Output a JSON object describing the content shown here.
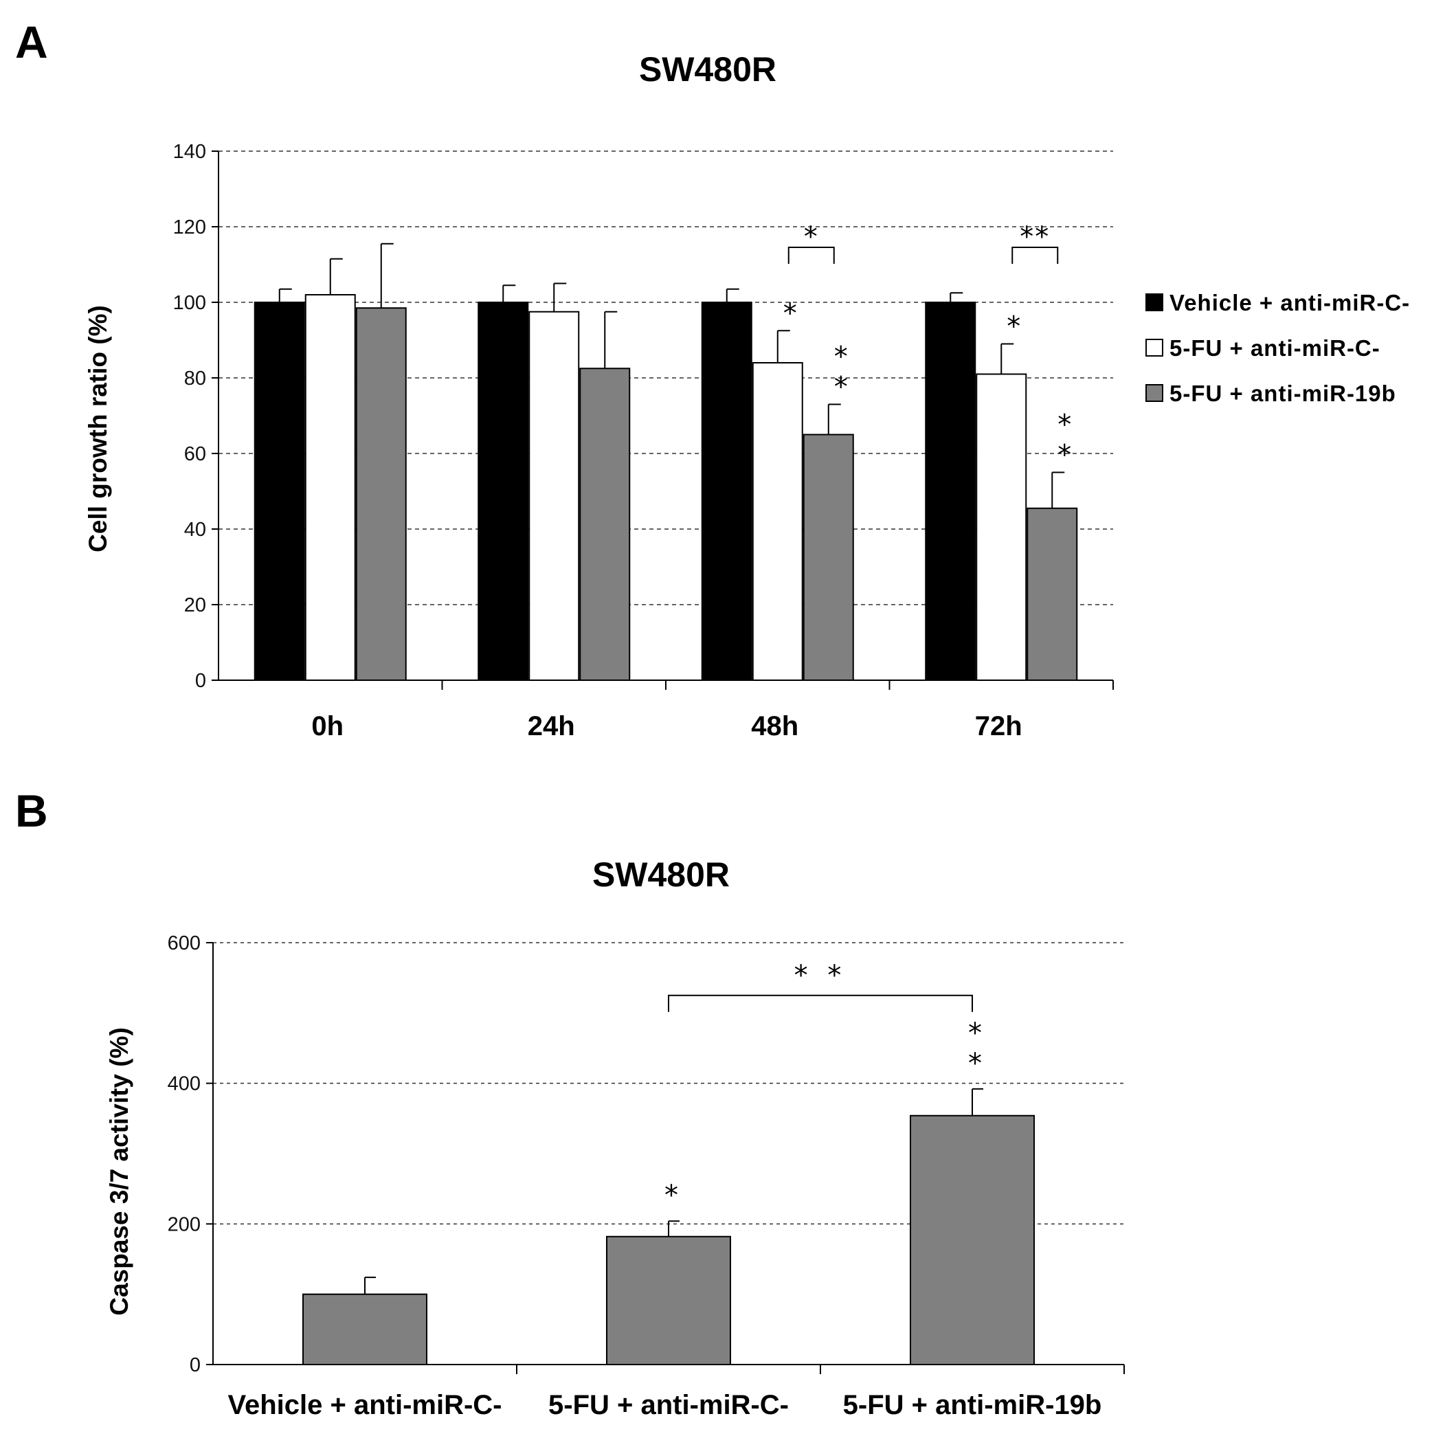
{
  "chart_data": [
    {
      "panel": "A",
      "type": "bar",
      "title": "SW480R",
      "xlabel": "",
      "ylabel": "Cell growth ratio (%)",
      "ylim": [
        0,
        140
      ],
      "yticks": [
        0,
        20,
        40,
        60,
        80,
        100,
        120,
        140
      ],
      "grid": true,
      "legend_position": "right",
      "categories": [
        "0h",
        "24h",
        "48h",
        "72h"
      ],
      "series": [
        {
          "name": "Vehicle + anti-miR-C-",
          "color": "#000000",
          "values": [
            100,
            100,
            100,
            100
          ],
          "errors": [
            3.5,
            4.5,
            3.5,
            2.5
          ],
          "significance": [
            "",
            "",
            "",
            ""
          ]
        },
        {
          "name": "5-FU + anti-miR-C-",
          "color": "#ffffff",
          "values": [
            102,
            97.5,
            84,
            81
          ],
          "errors": [
            9.5,
            7.5,
            8.5,
            8
          ],
          "significance": [
            "",
            "",
            "*",
            "*"
          ]
        },
        {
          "name": "5-FU + anti-miR-19b",
          "color": "#808080",
          "values": [
            98.5,
            82.5,
            65,
            45.5
          ],
          "errors": [
            17,
            15,
            8,
            9.5
          ],
          "significance": [
            "",
            "",
            "**",
            "**"
          ]
        }
      ],
      "brackets": [
        {
          "category": "48h",
          "from_series": 1,
          "to_series": 2,
          "level": 116,
          "label": "*"
        },
        {
          "category": "72h",
          "from_series": 1,
          "to_series": 2,
          "level": 116,
          "label": "**"
        }
      ]
    },
    {
      "panel": "B",
      "type": "bar",
      "title": "SW480R",
      "xlabel": "",
      "ylabel": "Caspase 3/7 activity (%)",
      "ylim": [
        0,
        600
      ],
      "yticks": [
        0,
        200,
        400,
        600
      ],
      "grid": true,
      "categories": [
        "Vehicle + anti-miR-C-",
        "5-FU + anti-miR-C-",
        "5-FU + anti-miR-19b"
      ],
      "series": [
        {
          "name": "Caspase 3/7 activity",
          "color": "#808080",
          "values": [
            100,
            182,
            354
          ],
          "errors": [
            24,
            22,
            38
          ],
          "significance": [
            "",
            "*",
            "**"
          ]
        }
      ],
      "brackets": [
        {
          "from_category": 1,
          "to_category": 2,
          "level": 525,
          "label": "* *"
        }
      ]
    }
  ]
}
